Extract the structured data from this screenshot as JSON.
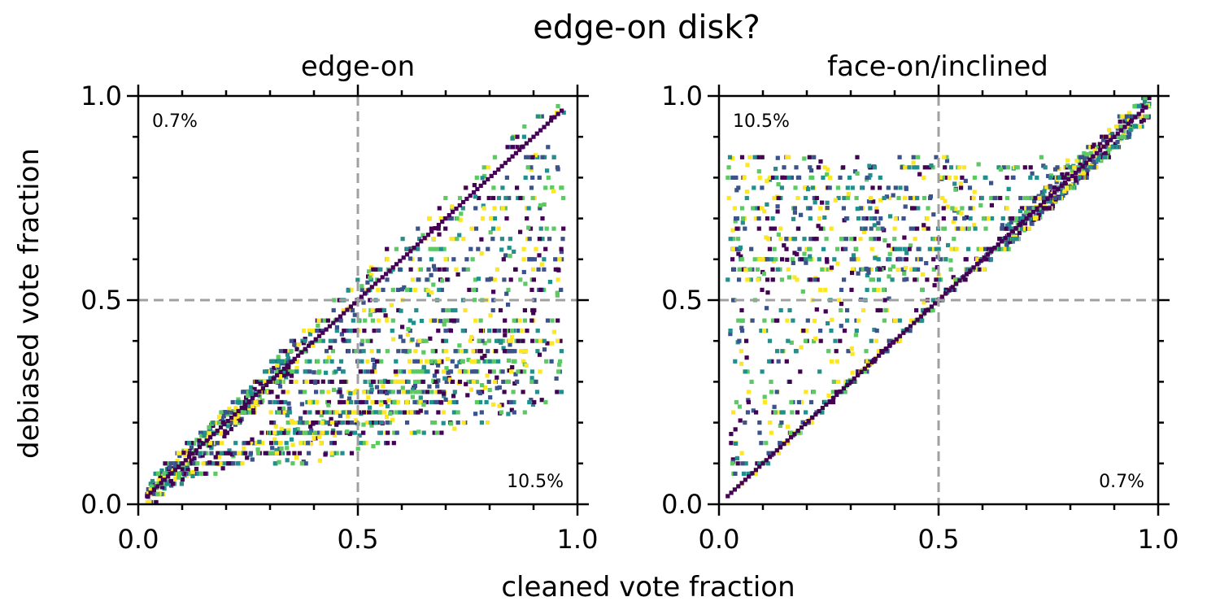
{
  "figure": {
    "title": "edge-on disk?",
    "xlabel": "cleaned vote fraction",
    "ylabel": "debiased vote fraction"
  },
  "colors": {
    "colormap": [
      "#440154",
      "#3b528b",
      "#21908d",
      "#5dc963",
      "#fde725"
    ],
    "reference_lines": "#a0a0a0",
    "axes": "#000000"
  },
  "chart_data": [
    {
      "type": "scatter",
      "title": "edge-on",
      "xlim": [
        0,
        1
      ],
      "ylim": [
        0,
        1
      ],
      "xticks": [
        "0.0",
        "0.5",
        "1.0"
      ],
      "yticks": [
        "0.0",
        "0.5",
        "1.0"
      ],
      "reference_lines": {
        "x": 0.5,
        "y": 0.5
      },
      "annotations": [
        {
          "text": "0.7%",
          "position": "top-left"
        },
        {
          "text": "10.5%",
          "position": "bottom-right"
        }
      ],
      "pattern": "below-diagonal",
      "point_spec": {
        "diagonal_band": {
          "x_range": [
            0.02,
            0.35
          ],
          "offset_range": [
            -0.03,
            0.03
          ]
        },
        "tail_band": {
          "x_range": [
            0.05,
            0.9
          ],
          "y_fraction_range": [
            0.3,
            0.5
          ]
        },
        "spread_region": {
          "x_range": [
            0.3,
            0.97
          ],
          "y_range": [
            0.1,
            0.97
          ]
        },
        "diagonal_line": {
          "x_range": [
            0.02,
            0.97
          ]
        }
      }
    },
    {
      "type": "scatter",
      "title": "face-on/inclined",
      "xlim": [
        0,
        1
      ],
      "ylim": [
        0,
        1
      ],
      "xticks": [
        "0.0",
        "0.5",
        "1.0"
      ],
      "yticks": [
        "0.0",
        "0.5",
        "1.0"
      ],
      "reference_lines": {
        "x": 0.5,
        "y": 0.5
      },
      "annotations": [
        {
          "text": "10.5%",
          "position": "top-left"
        },
        {
          "text": "0.7%",
          "position": "bottom-right"
        }
      ],
      "pattern": "above-diagonal",
      "point_spec": {
        "diagonal_band": {
          "x_range": [
            0.65,
            0.98
          ],
          "offset_range": [
            -0.03,
            0.03
          ]
        },
        "upper_band": {
          "x_range": [
            0.02,
            0.95
          ],
          "y_range": [
            0.55,
            0.85
          ]
        },
        "spread_region": {
          "x_range": [
            0.02,
            0.72
          ],
          "y_range": [
            0.02,
            0.62
          ]
        },
        "diagonal_line": {
          "x_range": [
            0.02,
            0.98
          ]
        }
      }
    }
  ]
}
